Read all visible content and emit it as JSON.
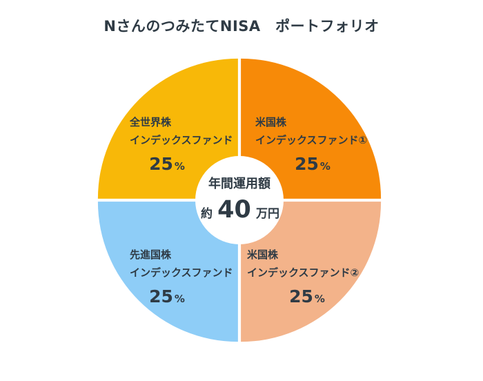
{
  "chart_data": {
    "type": "pie",
    "title": "NさんのつみたてNISA　ポートフォリオ",
    "center": {
      "label": "年間運用額",
      "prefix": "約",
      "amount": "40",
      "unit": "万円"
    },
    "percent_unit": "%",
    "slices": [
      {
        "name": "米国株",
        "fund": "インデックスファンド①",
        "value": 25,
        "percent_label": "25",
        "color": "#F78A08"
      },
      {
        "name": "米国株",
        "fund": "インデックスファンド②",
        "value": 25,
        "percent_label": "25",
        "color": "#F3B38A"
      },
      {
        "name": "先進国株",
        "fund": "インデックスファンド",
        "value": 25,
        "percent_label": "25",
        "color": "#8ECDF7"
      },
      {
        "name": "全世界株",
        "fund": "インデックスファンド",
        "value": 25,
        "percent_label": "25",
        "color": "#F8B808"
      }
    ]
  }
}
